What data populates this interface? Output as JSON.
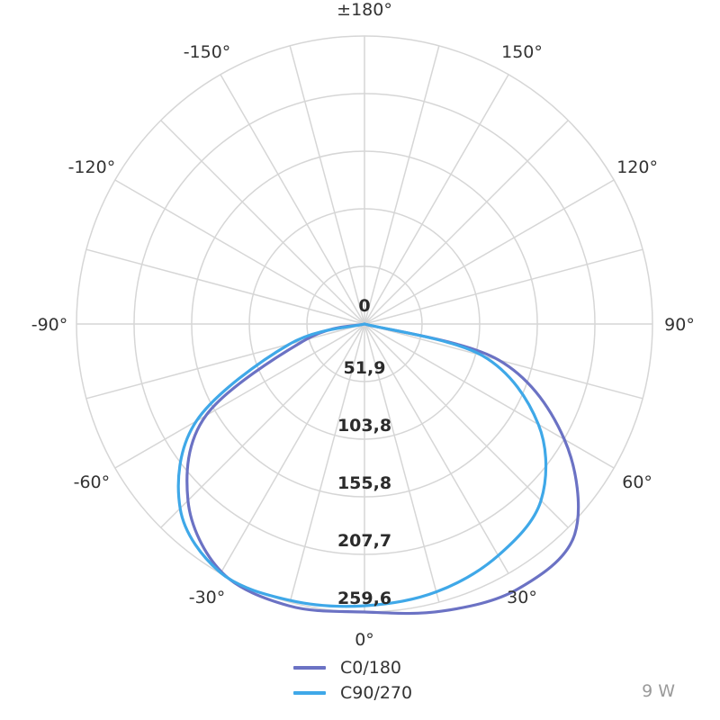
{
  "chart_data": {
    "type": "polar",
    "radial_max": 259.6,
    "ring_labels": [
      "0",
      "51,9",
      "103,8",
      "155,8",
      "207,7",
      "259,6"
    ],
    "ring_values": [
      0,
      51.9,
      103.8,
      155.8,
      207.7,
      259.6
    ],
    "angle_labels": [
      {
        "angle": 180,
        "text": "±180°"
      },
      {
        "angle": 150,
        "text": "150°"
      },
      {
        "angle": 120,
        "text": "120°"
      },
      {
        "angle": 90,
        "text": "90°"
      },
      {
        "angle": 60,
        "text": "60°"
      },
      {
        "angle": 30,
        "text": "30°"
      },
      {
        "angle": 0,
        "text": "0°"
      },
      {
        "angle": -30,
        "text": "-30°"
      },
      {
        "angle": -60,
        "text": "-60°"
      },
      {
        "angle": -90,
        "text": "-90°"
      },
      {
        "angle": -120,
        "text": "-120°"
      },
      {
        "angle": -150,
        "text": "-150°"
      }
    ],
    "spoke_step_deg": 15,
    "grid": true,
    "series": [
      {
        "name": "C0/180",
        "color": "#6b72c4",
        "angles": [
          -90,
          -75,
          -60,
          -45,
          -30,
          -15,
          0,
          15,
          30,
          45,
          60,
          75,
          90
        ],
        "values": [
          0,
          55,
          165,
          225,
          258,
          263,
          259.6,
          268,
          276,
          268,
          208,
          125,
          0
        ]
      },
      {
        "name": "C90/270",
        "color": "#3fa8e8",
        "angles": [
          -90,
          -75,
          -60,
          -45,
          -30,
          -15,
          0,
          15,
          30,
          45,
          60,
          75,
          90
        ],
        "values": [
          0,
          70,
          175,
          235,
          259,
          258,
          254,
          250,
          241,
          225,
          181,
          110,
          0
        ]
      }
    ],
    "legend_placement": "bottom-center"
  },
  "legend": {
    "items": [
      {
        "label": "C0/180",
        "color": "#6b72c4"
      },
      {
        "label": "C90/270",
        "color": "#3fa8e8"
      }
    ]
  },
  "power_label": "9 W"
}
